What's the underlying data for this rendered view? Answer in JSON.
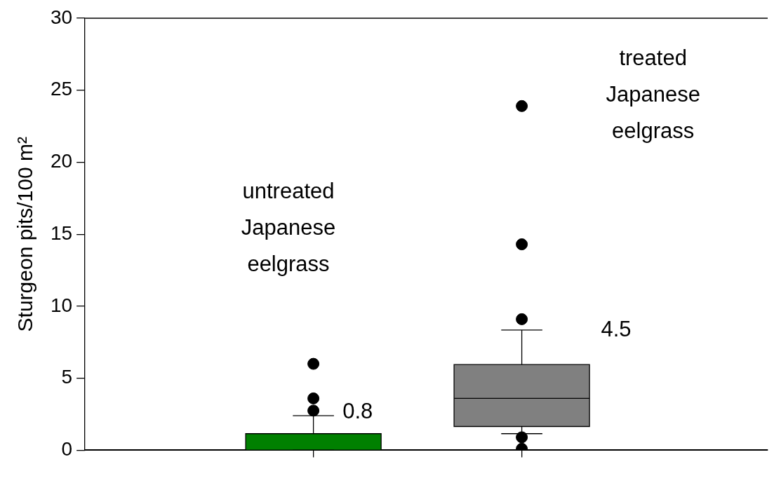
{
  "chart_data": {
    "type": "box",
    "ylabel": "Sturgeon pits/100 m²",
    "categories": [
      null,
      null
    ],
    "colors": [
      "#008000",
      "#808080"
    ],
    "boxes": [
      {
        "low": 0,
        "q1": 0,
        "median": 0,
        "q3": 1.15,
        "high": 2.4,
        "outliers": [
          2.75,
          3.6,
          6.0
        ]
      },
      {
        "low": 1.15,
        "q1": 1.65,
        "median": 3.6,
        "q3": 5.95,
        "high": 8.35,
        "outliers": [
          0.1,
          0.9,
          9.1,
          14.3,
          23.9
        ]
      }
    ],
    "ylim": [
      0,
      30
    ],
    "yticks": [
      0,
      5,
      10,
      15,
      20,
      25,
      30
    ],
    "grid": false,
    "legend": false,
    "marker": "circle",
    "annotations": [
      "untreated Japanese eelgrass",
      "treated Japanese eelgrass",
      "0.8",
      "4.5"
    ]
  }
}
